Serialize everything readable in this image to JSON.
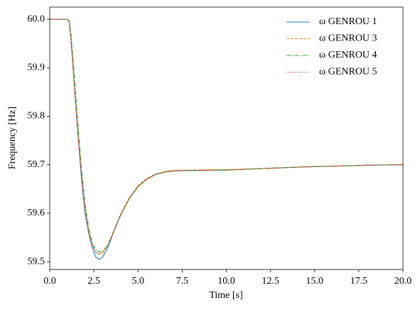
{
  "chart_data": {
    "type": "line",
    "xlabel": "Time [s]",
    "ylabel": "Frequency [Hz]",
    "x": [
      0,
      1.0,
      1.1,
      1.2,
      1.4,
      1.6,
      1.8,
      2.0,
      2.2,
      2.4,
      2.6,
      2.8,
      3.0,
      3.3,
      3.6,
      4.0,
      4.5,
      5.0,
      5.5,
      6.0,
      6.5,
      7.0,
      7.5,
      8,
      10,
      12,
      14,
      16,
      18,
      20
    ],
    "series": [
      {
        "name": "ω GENROU 1",
        "color": "#1f77b4",
        "linestyle": "solid",
        "values": [
          60.0,
          60.0,
          59.995,
          59.96,
          59.86,
          59.76,
          59.67,
          59.6,
          59.56,
          59.53,
          59.51,
          59.505,
          59.51,
          59.53,
          59.56,
          59.595,
          59.63,
          59.655,
          59.67,
          59.68,
          59.685,
          59.687,
          59.688,
          59.688,
          59.689,
          59.692,
          59.695,
          59.697,
          59.699,
          59.7
        ]
      },
      {
        "name": "ω GENROU 3",
        "color": "#ff7f0e",
        "linestyle": "dashed",
        "values": [
          60.0,
          60.0,
          59.995,
          59.96,
          59.86,
          59.76,
          59.68,
          59.61,
          59.565,
          59.535,
          59.52,
          59.515,
          59.52,
          59.535,
          59.562,
          59.597,
          59.632,
          59.657,
          59.672,
          59.681,
          59.686,
          59.688,
          59.689,
          59.689,
          59.69,
          59.692,
          59.695,
          59.697,
          59.699,
          59.7
        ]
      },
      {
        "name": "ω GENROU 4",
        "color": "#2ca02c",
        "linestyle": "dashdot",
        "values": [
          60.0,
          60.0,
          59.997,
          59.97,
          59.88,
          59.78,
          59.69,
          59.62,
          59.57,
          59.54,
          59.525,
          59.52,
          59.522,
          59.535,
          59.56,
          59.595,
          59.63,
          59.655,
          59.67,
          59.68,
          59.685,
          59.687,
          59.688,
          59.688,
          59.689,
          59.692,
          59.695,
          59.697,
          59.699,
          59.7
        ]
      },
      {
        "name": "ω GENROU 5",
        "color": "#d62728",
        "linestyle": "dotted",
        "values": [
          60.0,
          60.0,
          59.995,
          59.96,
          59.86,
          59.76,
          59.675,
          59.605,
          59.56,
          59.535,
          59.52,
          59.515,
          59.518,
          59.533,
          59.56,
          59.595,
          59.63,
          59.655,
          59.67,
          59.68,
          59.685,
          59.687,
          59.688,
          59.688,
          59.689,
          59.692,
          59.695,
          59.697,
          59.699,
          59.7
        ]
      }
    ],
    "xlim": [
      0,
      20
    ],
    "xticks": [
      {
        "value": 0,
        "label": "0.0"
      },
      2.5,
      {
        "value": 5,
        "label": "5.0"
      },
      7.5,
      {
        "value": 10,
        "label": "10.0"
      },
      12.5,
      {
        "value": 15,
        "label": "15.0"
      },
      17.5,
      {
        "value": 20,
        "label": "20.0"
      }
    ],
    "ylim": [
      59.484,
      60.025
    ],
    "yticks": [
      59.5,
      59.6,
      59.7,
      59.8,
      59.9,
      {
        "value": 60,
        "label": "60.0"
      }
    ],
    "grid": false,
    "legend": "upper-right"
  }
}
